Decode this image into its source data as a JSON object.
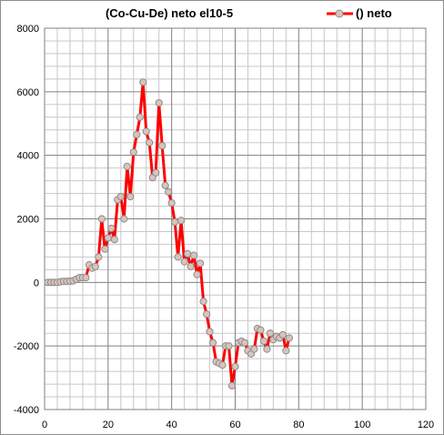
{
  "chart_data": {
    "type": "line",
    "title": "(Co-Cu-De) neto el10-5",
    "xlabel": "",
    "ylabel": "",
    "xlim": [
      0,
      120
    ],
    "ylim": [
      -4000,
      8000
    ],
    "x_major_ticks": [
      0,
      20,
      40,
      60,
      80,
      100,
      120
    ],
    "y_major_ticks": [
      -4000,
      -2000,
      0,
      2000,
      4000,
      6000,
      8000
    ],
    "x_tick_labels": [
      "0",
      "20",
      "40",
      "60",
      "80",
      "100",
      "120"
    ],
    "y_tick_labels": [
      "-4000",
      "-2000",
      "0",
      "2000",
      "4000",
      "6000",
      "8000"
    ],
    "grid": true,
    "legend": "top-right",
    "series": [
      {
        "name": "() neto",
        "color": "#ff0000",
        "marker_fill": "#d9c3bd",
        "marker_stroke": "#8c8c8c",
        "x": [
          1,
          2,
          3,
          4,
          5,
          6,
          7,
          8,
          9,
          10,
          11,
          12,
          13,
          14,
          15,
          16,
          17,
          18,
          19,
          20,
          21,
          22,
          23,
          24,
          25,
          26,
          27,
          28,
          29,
          30,
          31,
          32,
          33,
          34,
          35,
          36,
          37,
          38,
          39,
          40,
          41,
          42,
          43,
          44,
          45,
          46,
          47,
          48,
          49,
          50,
          51,
          52,
          53,
          54,
          55,
          56,
          57,
          58,
          59,
          60,
          61,
          62,
          63,
          64,
          65,
          66,
          67,
          68,
          69,
          70,
          71,
          72,
          73,
          74,
          75,
          76,
          77
        ],
        "y": [
          0,
          0,
          0,
          0,
          20,
          30,
          30,
          40,
          50,
          100,
          150,
          150,
          150,
          550,
          450,
          500,
          800,
          2000,
          1050,
          1400,
          1700,
          1350,
          2600,
          2700,
          2000,
          3650,
          2700,
          4100,
          4650,
          5200,
          6300,
          4750,
          4400,
          3300,
          3450,
          5650,
          4300,
          3050,
          2850,
          2500,
          1900,
          800,
          1950,
          650,
          900,
          500,
          850,
          250,
          600,
          -600,
          -1000,
          -1550,
          -1900,
          -2500,
          -2550,
          -2600,
          -2000,
          -2000,
          -3250,
          -2650,
          -1900,
          -1850,
          -1900,
          -2150,
          -2250,
          -2100,
          -1450,
          -1500,
          -1850,
          -2100,
          -1600,
          -1800,
          -1700,
          -1750,
          -1650,
          -2150,
          -1750
        ]
      }
    ]
  }
}
